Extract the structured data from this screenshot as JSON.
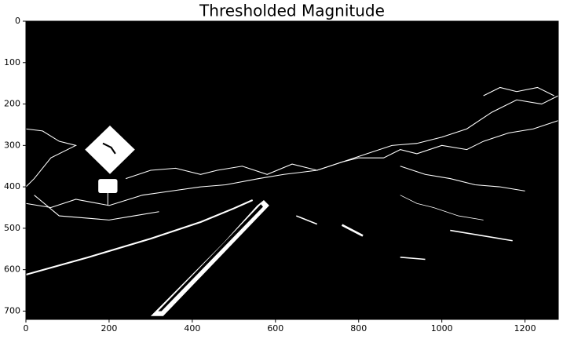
{
  "chart_data": {
    "type": "image",
    "title": "Thresholded Magnitude",
    "xlim": [
      0,
      1280
    ],
    "ylim": [
      720,
      0
    ],
    "xticks": [
      0,
      200,
      400,
      600,
      800,
      1000,
      1200
    ],
    "yticks": [
      0,
      100,
      200,
      300,
      400,
      500,
      600,
      700
    ]
  }
}
